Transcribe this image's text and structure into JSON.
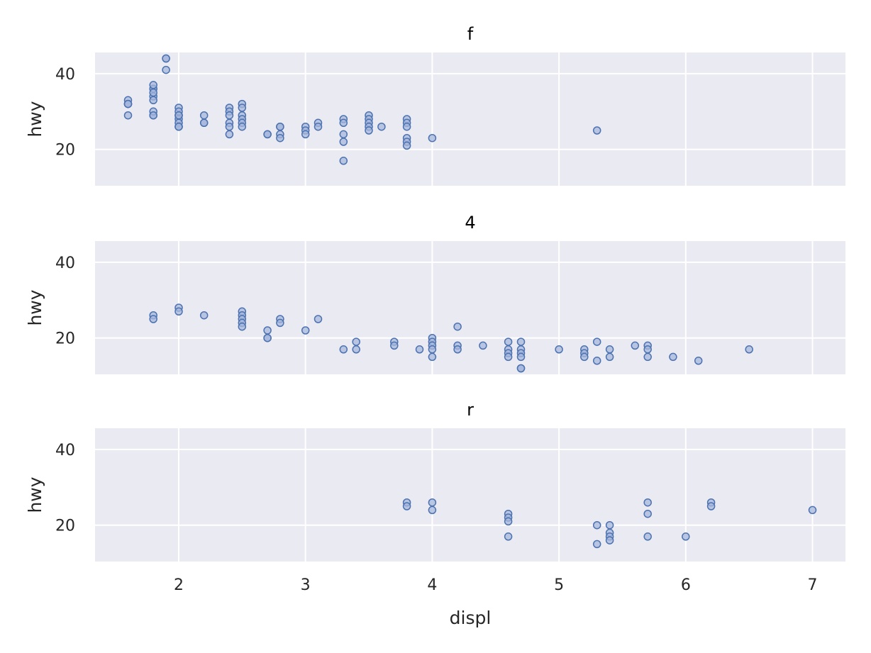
{
  "chart_data": {
    "type": "scatter",
    "xlabel": "displ",
    "ylabel": "hwy",
    "xlim": [
      1.34,
      7.26
    ],
    "ylim": [
      10.4,
      45.6
    ],
    "xticks": [
      2,
      3,
      4,
      5,
      6,
      7
    ],
    "yticks": [
      20,
      40
    ],
    "grid": true,
    "colors": {
      "background": "#eaeaf2",
      "grid": "#ffffff",
      "point_fill": "#a6b7dc",
      "point_edge": "#4c72b0"
    },
    "facets": [
      {
        "title": "f",
        "points": [
          [
            1.6,
            33
          ],
          [
            1.6,
            32
          ],
          [
            1.6,
            32
          ],
          [
            1.6,
            29
          ],
          [
            1.6,
            32
          ],
          [
            1.8,
            34
          ],
          [
            1.8,
            36
          ],
          [
            1.8,
            36
          ],
          [
            1.8,
            29
          ],
          [
            1.8,
            30
          ],
          [
            1.8,
            35
          ],
          [
            1.8,
            37
          ],
          [
            1.8,
            33
          ],
          [
            1.8,
            29
          ],
          [
            1.9,
            44
          ],
          [
            1.9,
            44
          ],
          [
            1.9,
            41
          ],
          [
            2.0,
            29
          ],
          [
            2.0,
            26
          ],
          [
            2.0,
            29
          ],
          [
            2.0,
            28
          ],
          [
            2.0,
            27
          ],
          [
            2.0,
            31
          ],
          [
            2.0,
            26
          ],
          [
            2.0,
            30
          ],
          [
            2.0,
            29
          ],
          [
            2.0,
            26
          ],
          [
            2.2,
            29
          ],
          [
            2.2,
            27
          ],
          [
            2.2,
            27
          ],
          [
            2.4,
            31
          ],
          [
            2.4,
            30
          ],
          [
            2.4,
            29
          ],
          [
            2.4,
            27
          ],
          [
            2.4,
            26
          ],
          [
            2.4,
            24
          ],
          [
            2.5,
            32
          ],
          [
            2.5,
            31
          ],
          [
            2.5,
            29
          ],
          [
            2.5,
            28
          ],
          [
            2.5,
            27
          ],
          [
            2.5,
            26
          ],
          [
            2.7,
            24
          ],
          [
            2.7,
            24
          ],
          [
            2.8,
            26
          ],
          [
            2.8,
            24
          ],
          [
            2.8,
            23
          ],
          [
            2.8,
            26
          ],
          [
            3.0,
            26
          ],
          [
            3.0,
            25
          ],
          [
            3.0,
            24
          ],
          [
            3.1,
            27
          ],
          [
            3.1,
            26
          ],
          [
            3.3,
            28
          ],
          [
            3.3,
            27
          ],
          [
            3.3,
            24
          ],
          [
            3.3,
            22
          ],
          [
            3.3,
            17
          ],
          [
            3.5,
            29
          ],
          [
            3.5,
            28
          ],
          [
            3.5,
            27
          ],
          [
            3.5,
            26
          ],
          [
            3.5,
            25
          ],
          [
            3.6,
            26
          ],
          [
            3.8,
            28
          ],
          [
            3.8,
            27
          ],
          [
            3.8,
            26
          ],
          [
            3.8,
            23
          ],
          [
            3.8,
            22
          ],
          [
            3.8,
            21
          ],
          [
            4.0,
            23
          ],
          [
            5.3,
            25
          ]
        ]
      },
      {
        "title": "4",
        "points": [
          [
            1.8,
            26
          ],
          [
            1.8,
            25
          ],
          [
            2.0,
            28
          ],
          [
            2.0,
            27
          ],
          [
            2.2,
            26
          ],
          [
            2.5,
            27
          ],
          [
            2.5,
            26
          ],
          [
            2.5,
            25
          ],
          [
            2.5,
            24
          ],
          [
            2.5,
            23
          ],
          [
            2.7,
            22
          ],
          [
            2.7,
            20
          ],
          [
            2.7,
            20
          ],
          [
            2.8,
            25
          ],
          [
            2.8,
            24
          ],
          [
            3.0,
            22
          ],
          [
            3.1,
            25
          ],
          [
            3.3,
            17
          ],
          [
            3.4,
            19
          ],
          [
            3.4,
            17
          ],
          [
            3.7,
            19
          ],
          [
            3.7,
            18
          ],
          [
            3.9,
            17
          ],
          [
            4.0,
            20
          ],
          [
            4.0,
            19
          ],
          [
            4.0,
            18
          ],
          [
            4.0,
            17
          ],
          [
            4.0,
            15
          ],
          [
            4.2,
            23
          ],
          [
            4.2,
            18
          ],
          [
            4.2,
            17
          ],
          [
            4.4,
            18
          ],
          [
            4.6,
            19
          ],
          [
            4.6,
            17
          ],
          [
            4.6,
            16
          ],
          [
            4.6,
            15
          ],
          [
            4.7,
            19
          ],
          [
            4.7,
            17
          ],
          [
            4.7,
            16
          ],
          [
            4.7,
            15
          ],
          [
            4.7,
            12
          ],
          [
            4.7,
            12
          ],
          [
            5.0,
            17
          ],
          [
            5.2,
            17
          ],
          [
            5.2,
            16
          ],
          [
            5.2,
            15
          ],
          [
            5.3,
            19
          ],
          [
            5.3,
            14
          ],
          [
            5.4,
            17
          ],
          [
            5.4,
            15
          ],
          [
            5.6,
            18
          ],
          [
            5.7,
            18
          ],
          [
            5.7,
            17
          ],
          [
            5.7,
            15
          ],
          [
            5.9,
            15
          ],
          [
            6.1,
            14
          ],
          [
            6.5,
            17
          ]
        ]
      },
      {
        "title": "r",
        "points": [
          [
            3.8,
            26
          ],
          [
            3.8,
            25
          ],
          [
            4.0,
            26
          ],
          [
            4.0,
            24
          ],
          [
            4.6,
            23
          ],
          [
            4.6,
            22
          ],
          [
            4.6,
            21
          ],
          [
            4.6,
            17
          ],
          [
            5.3,
            20
          ],
          [
            5.3,
            15
          ],
          [
            5.4,
            20
          ],
          [
            5.4,
            18
          ],
          [
            5.4,
            17
          ],
          [
            5.4,
            16
          ],
          [
            5.7,
            26
          ],
          [
            5.7,
            23
          ],
          [
            5.7,
            17
          ],
          [
            6.0,
            17
          ],
          [
            6.2,
            26
          ],
          [
            6.2,
            25
          ],
          [
            7.0,
            24
          ]
        ]
      }
    ]
  }
}
